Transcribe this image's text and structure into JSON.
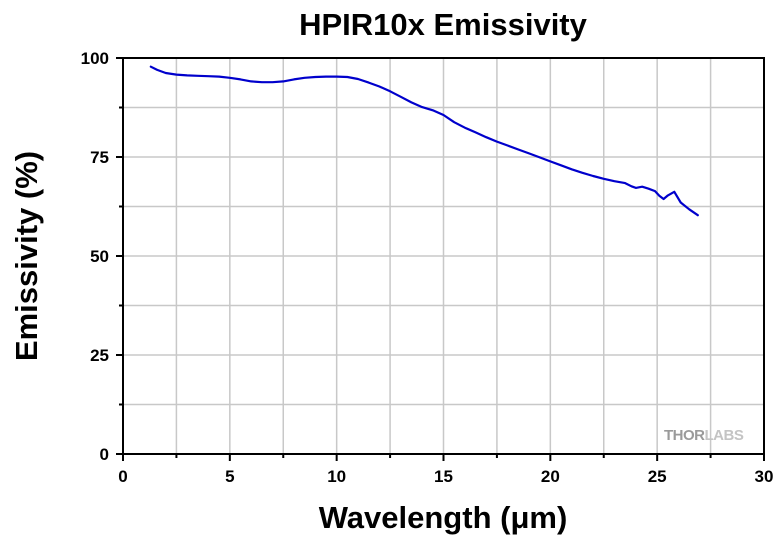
{
  "chart_data": {
    "type": "line",
    "title": "HPIR10x Emissivity",
    "xlabel": "Wavelength (μm)",
    "ylabel": "Emissivity (%)",
    "xlim": [
      0,
      30
    ],
    "ylim": [
      0,
      100
    ],
    "xticks": [
      0,
      5,
      10,
      15,
      20,
      25,
      30
    ],
    "yticks": [
      0,
      25,
      50,
      75,
      100
    ],
    "grid": true,
    "series_color": "#0000cc",
    "series": [
      {
        "x": [
          1.3,
          1.6,
          2.0,
          2.5,
          3.0,
          3.5,
          4.0,
          4.5,
          5.0,
          5.5,
          6.0,
          6.5,
          7.0,
          7.5,
          8.0,
          8.5,
          9.0,
          9.5,
          10.0,
          10.5,
          11.0,
          11.5,
          12.0,
          12.5,
          13.0,
          13.5,
          14.0,
          14.5,
          15.0,
          15.5,
          16.0,
          16.5,
          17.0,
          17.5,
          18.0,
          18.5,
          19.0,
          19.5,
          20.0,
          20.5,
          21.0,
          21.5,
          22.0,
          22.5,
          23.0,
          23.5,
          23.8,
          24.0,
          24.3,
          24.6,
          24.9,
          25.1,
          25.3,
          25.5,
          25.8,
          26.1,
          26.5,
          26.9
        ],
        "y": [
          97.8,
          97.0,
          96.2,
          95.8,
          95.6,
          95.5,
          95.4,
          95.3,
          95.0,
          94.6,
          94.1,
          93.9,
          93.9,
          94.1,
          94.6,
          95.0,
          95.2,
          95.3,
          95.3,
          95.2,
          94.7,
          93.8,
          92.8,
          91.6,
          90.2,
          88.8,
          87.6,
          86.8,
          85.6,
          83.8,
          82.4,
          81.2,
          80.0,
          78.9,
          77.9,
          76.9,
          75.9,
          74.9,
          73.9,
          72.9,
          71.9,
          71.0,
          70.2,
          69.5,
          68.9,
          68.4,
          67.6,
          67.2,
          67.5,
          67.0,
          66.4,
          65.2,
          64.4,
          65.3,
          66.2,
          63.5,
          61.8,
          60.3
        ]
      }
    ]
  },
  "watermark": {
    "text_part1": "THOR",
    "text_part2": "LABS",
    "color1": "#9a9a9a",
    "color2": "#c4c4c4"
  }
}
